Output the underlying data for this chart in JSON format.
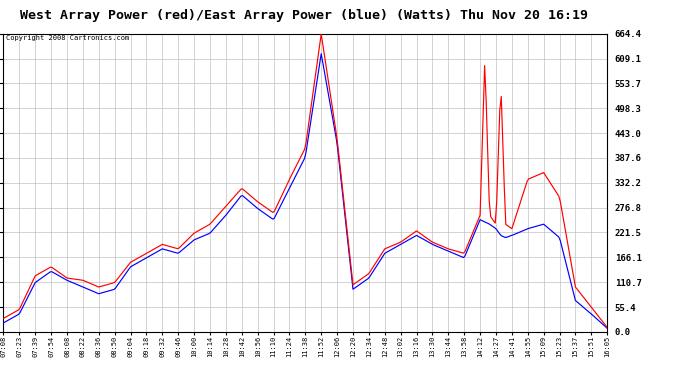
{
  "title": "West Array Power (red)/East Array Power (blue) (Watts) Thu Nov 20 16:19",
  "copyright": "Copyright 2008 Cartronics.com",
  "yticks": [
    0.0,
    55.4,
    110.7,
    166.1,
    221.5,
    276.8,
    332.2,
    387.6,
    443.0,
    498.3,
    553.7,
    609.1,
    664.4
  ],
  "ymax": 664.4,
  "ymin": 0.0,
  "red_color": "#ff0000",
  "blue_color": "#0000ff",
  "bg_color": "#ffffff",
  "grid_color": "#c0c0c0",
  "title_fontsize": 9.5,
  "xtick_labels": [
    "07:08",
    "07:23",
    "07:39",
    "07:54",
    "08:08",
    "08:22",
    "08:36",
    "08:50",
    "09:04",
    "09:18",
    "09:32",
    "09:46",
    "10:00",
    "10:14",
    "10:28",
    "10:42",
    "10:56",
    "11:10",
    "11:24",
    "11:38",
    "11:52",
    "12:06",
    "12:20",
    "12:34",
    "12:48",
    "13:02",
    "13:16",
    "13:30",
    "13:44",
    "13:58",
    "14:12",
    "14:27",
    "14:41",
    "14:55",
    "15:09",
    "15:23",
    "15:37",
    "15:51",
    "16:05"
  ],
  "red_keypoints": [
    [
      0,
      30
    ],
    [
      1,
      50
    ],
    [
      2,
      125
    ],
    [
      3,
      145
    ],
    [
      4,
      120
    ],
    [
      5,
      115
    ],
    [
      6,
      100
    ],
    [
      7,
      110
    ],
    [
      8,
      155
    ],
    [
      9,
      175
    ],
    [
      10,
      195
    ],
    [
      11,
      185
    ],
    [
      12,
      220
    ],
    [
      13,
      240
    ],
    [
      14,
      280
    ],
    [
      15,
      320
    ],
    [
      16,
      290
    ],
    [
      17,
      265
    ],
    [
      18,
      340
    ],
    [
      19,
      410
    ],
    [
      20,
      664
    ],
    [
      21,
      430
    ],
    [
      22,
      105
    ],
    [
      23,
      130
    ],
    [
      24,
      185
    ],
    [
      25,
      200
    ],
    [
      26,
      225
    ],
    [
      27,
      200
    ],
    [
      28,
      185
    ],
    [
      29,
      175
    ],
    [
      30,
      260
    ],
    [
      30.3,
      610
    ],
    [
      30.6,
      260
    ],
    [
      31,
      240
    ],
    [
      31.3,
      560
    ],
    [
      31.6,
      240
    ],
    [
      32,
      230
    ],
    [
      33,
      340
    ],
    [
      34,
      355
    ],
    [
      35,
      300
    ],
    [
      36,
      100
    ],
    [
      37,
      55
    ],
    [
      38,
      10
    ]
  ],
  "blue_keypoints": [
    [
      0,
      20
    ],
    [
      1,
      40
    ],
    [
      2,
      110
    ],
    [
      3,
      135
    ],
    [
      4,
      115
    ],
    [
      5,
      100
    ],
    [
      6,
      85
    ],
    [
      7,
      95
    ],
    [
      8,
      145
    ],
    [
      9,
      165
    ],
    [
      10,
      185
    ],
    [
      11,
      175
    ],
    [
      12,
      205
    ],
    [
      13,
      220
    ],
    [
      14,
      260
    ],
    [
      15,
      305
    ],
    [
      16,
      275
    ],
    [
      17,
      250
    ],
    [
      18,
      320
    ],
    [
      19,
      390
    ],
    [
      20,
      620
    ],
    [
      21,
      420
    ],
    [
      22,
      95
    ],
    [
      23,
      120
    ],
    [
      24,
      175
    ],
    [
      25,
      195
    ],
    [
      26,
      215
    ],
    [
      27,
      195
    ],
    [
      28,
      180
    ],
    [
      29,
      165
    ],
    [
      30,
      250
    ],
    [
      30.3,
      245
    ],
    [
      30.6,
      240
    ],
    [
      31,
      230
    ],
    [
      31.3,
      215
    ],
    [
      31.6,
      210
    ],
    [
      32,
      215
    ],
    [
      33,
      230
    ],
    [
      34,
      240
    ],
    [
      35,
      210
    ],
    [
      36,
      70
    ],
    [
      37,
      40
    ],
    [
      38,
      8
    ]
  ]
}
